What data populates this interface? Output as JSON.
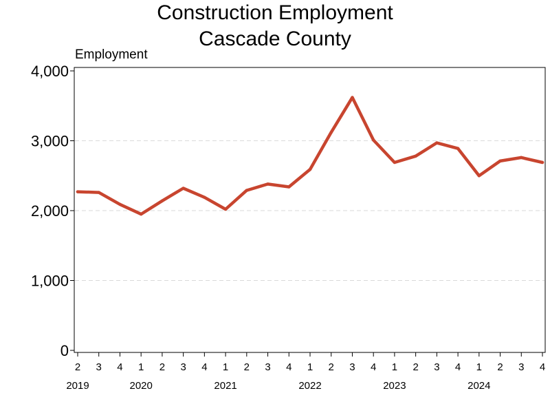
{
  "colors": {
    "line": "#c8452f",
    "grid": "#d9d9d9",
    "axis": "#000000"
  },
  "chart_data": {
    "type": "line",
    "title_lines": [
      "Construction Employment",
      "Cascade County"
    ],
    "ylabel": "Employment",
    "xlabel": "",
    "ylim": [
      0,
      4000
    ],
    "yticks": [
      0,
      1000,
      2000,
      3000,
      4000
    ],
    "ytick_labels": [
      "0",
      "1,000",
      "2,000",
      "3,000",
      "4,000"
    ],
    "grid": "horizontal dashed",
    "x_quarters": [
      "2",
      "3",
      "4",
      "1",
      "2",
      "3",
      "4",
      "1",
      "2",
      "3",
      "4",
      "1",
      "2",
      "3",
      "4",
      "1",
      "2",
      "3",
      "4",
      "1",
      "2",
      "3",
      "4"
    ],
    "x_years": [
      {
        "label": "2019",
        "index": 0
      },
      {
        "label": "2020",
        "index": 3
      },
      {
        "label": "2021",
        "index": 7
      },
      {
        "label": "2022",
        "index": 11
      },
      {
        "label": "2023",
        "index": 15
      },
      {
        "label": "2024",
        "index": 19
      }
    ],
    "series": [
      {
        "values": [
          2270,
          2260,
          2090,
          1950,
          2140,
          2320,
          2190,
          2020,
          2290,
          2380,
          2340,
          2590,
          3120,
          3620,
          3010,
          2690,
          2780,
          2970,
          2890,
          2500,
          2710,
          2760,
          2690
        ]
      }
    ]
  }
}
